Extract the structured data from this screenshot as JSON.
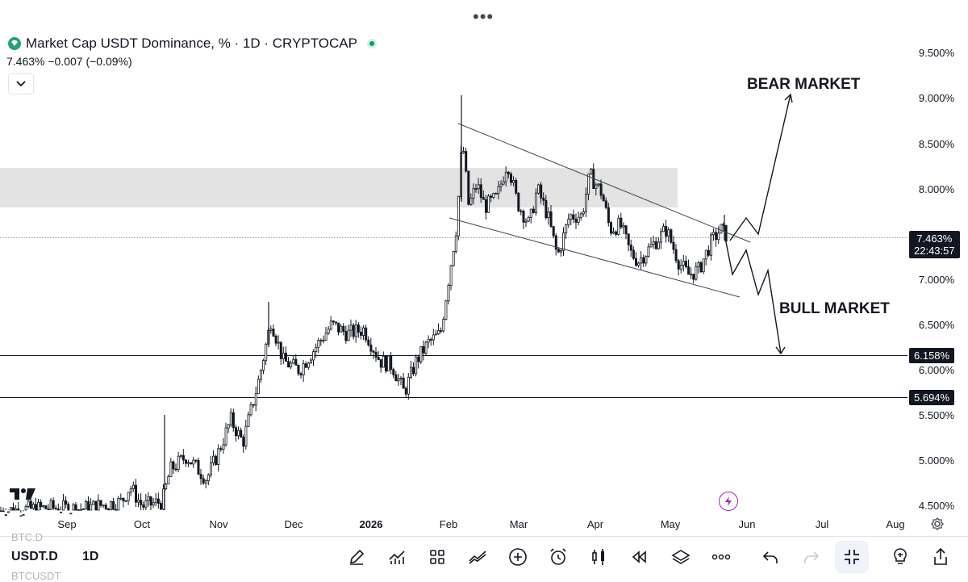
{
  "header": {
    "title": "Market Cap USDT Dominance, % · 1D · CRYPTOCAP",
    "price_line": "7.463%  −0.007 (−0.09%)",
    "more_menu": "•••"
  },
  "y_axis": {
    "labels": [
      "9.500%",
      "9.000%",
      "8.500%",
      "8.000%",
      "7.000%",
      "6.500%",
      "6.000%",
      "5.500%",
      "5.000%",
      "4.500%"
    ],
    "current_price": "7.463%",
    "countdown": "22:43:57",
    "level_1": "6.158%",
    "level_2": "5.694%"
  },
  "x_axis": {
    "labels": [
      "Sep",
      "Oct",
      "Nov",
      "Dec",
      "2026",
      "Feb",
      "Mar",
      "Apr",
      "May",
      "Jun",
      "Jul",
      "Aug"
    ]
  },
  "annotations": {
    "bear": "BEAR MARKET",
    "bull": "BULL MARKET"
  },
  "bottom_bar": {
    "ticker": "USDT.D",
    "interval": "1D",
    "ghost_above": "BTC.D",
    "ghost_below": "BTCUSDT"
  },
  "icons": {
    "toolbar": [
      "pencil-icon",
      "indicators-icon",
      "layout-grid-icon",
      "compare-icon",
      "add-icon",
      "alert-clock-icon",
      "candles-icon",
      "replay-icon",
      "layers-icon",
      "more-icon",
      "undo-icon",
      "redo-icon",
      "fullscreen-exit-icon",
      "lightbulb-icon",
      "share-icon"
    ]
  },
  "chart_data": {
    "type": "candlestick",
    "title": "Market Cap USDT Dominance, % · 1D · CRYPTOCAP",
    "ylim": [
      4.4,
      9.8
    ],
    "y_scale": "linear",
    "grid": false,
    "horizontal_levels": [
      6.158,
      5.694
    ],
    "resistance_zone": [
      7.8,
      8.23
    ],
    "last_price": 7.463,
    "close_path": [
      [
        0,
        4.45
      ],
      [
        60,
        4.48
      ],
      [
        100,
        4.47
      ],
      [
        150,
        4.55
      ],
      [
        160,
        4.72
      ],
      [
        175,
        4.5
      ],
      [
        200,
        4.55
      ],
      [
        210,
        4.9
      ],
      [
        230,
        5.05
      ],
      [
        255,
        4.8
      ],
      [
        270,
        5.1
      ],
      [
        285,
        5.45
      ],
      [
        300,
        5.2
      ],
      [
        320,
        5.9
      ],
      [
        335,
        6.55
      ],
      [
        350,
        6.1
      ],
      [
        370,
        6.0
      ],
      [
        390,
        6.25
      ],
      [
        410,
        6.5
      ],
      [
        430,
        6.4
      ],
      [
        450,
        6.45
      ],
      [
        470,
        6.1
      ],
      [
        485,
        6.05
      ],
      [
        500,
        5.75
      ],
      [
        515,
        6.1
      ],
      [
        530,
        6.3
      ],
      [
        545,
        6.4
      ],
      [
        555,
        7.0
      ],
      [
        565,
        7.6
      ],
      [
        572,
        8.55
      ],
      [
        580,
        7.8
      ],
      [
        590,
        8.05
      ],
      [
        600,
        7.8
      ],
      [
        615,
        7.9
      ],
      [
        628,
        8.3
      ],
      [
        640,
        7.85
      ],
      [
        655,
        7.6
      ],
      [
        665,
        8.0
      ],
      [
        678,
        7.7
      ],
      [
        690,
        7.25
      ],
      [
        705,
        7.7
      ],
      [
        720,
        7.7
      ],
      [
        730,
        8.15
      ],
      [
        745,
        7.95
      ],
      [
        755,
        7.55
      ],
      [
        768,
        7.6
      ],
      [
        780,
        7.3
      ],
      [
        790,
        7.2
      ],
      [
        805,
        7.35
      ],
      [
        825,
        7.55
      ],
      [
        840,
        7.2
      ],
      [
        852,
        7.05
      ],
      [
        865,
        7.1
      ],
      [
        880,
        7.4
      ],
      [
        892,
        7.55
      ],
      [
        902,
        7.463
      ]
    ]
  }
}
